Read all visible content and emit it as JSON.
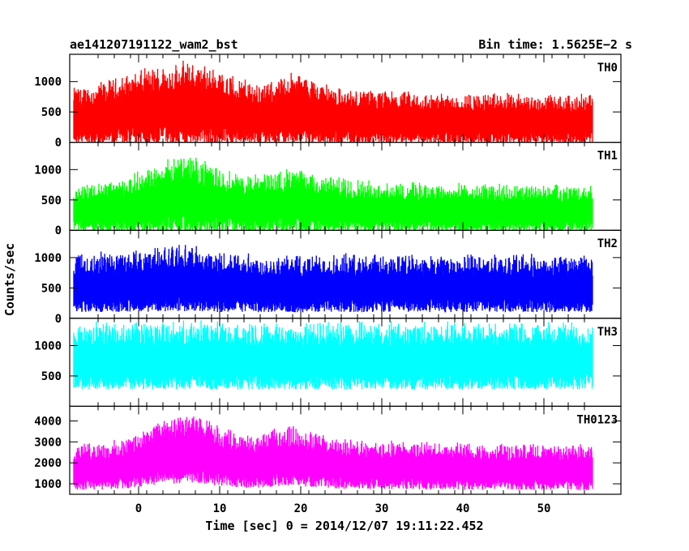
{
  "header": {
    "title": "ae141207191122_wam2_bst",
    "bin_time": "Bin time: 1.5625E−2 s"
  },
  "axes": {
    "xlabel": "Time [sec] 0 = 2014/12/07 19:11:22.452",
    "ylabel": "Counts/sec"
  },
  "chart_data": [
    {
      "type": "line",
      "name": "TH0",
      "color": "#ff0000",
      "xlim": [
        -8.5,
        59.5
      ],
      "ylim": [
        0,
        1450
      ],
      "xticks": [
        0,
        10,
        20,
        30,
        40,
        50
      ],
      "yticks": [
        0,
        500,
        1000
      ],
      "baseline": [
        [
          -8,
          430
        ],
        [
          -4,
          480
        ],
        [
          0,
          560
        ],
        [
          3,
          610
        ],
        [
          6,
          640
        ],
        [
          9,
          590
        ],
        [
          12,
          520
        ],
        [
          16,
          460
        ],
        [
          19,
          560
        ],
        [
          21,
          520
        ],
        [
          25,
          420
        ],
        [
          35,
          390
        ],
        [
          45,
          385
        ],
        [
          56,
          370
        ]
      ],
      "spread": 0.95
    },
    {
      "type": "line",
      "name": "TH1",
      "color": "#00ff00",
      "xlim": [
        -8.5,
        59.5
      ],
      "ylim": [
        0,
        1450
      ],
      "xticks": [
        0,
        10,
        20,
        30,
        40,
        50
      ],
      "yticks": [
        0,
        500,
        1000
      ],
      "baseline": [
        [
          -8,
          360
        ],
        [
          -2,
          400
        ],
        [
          2,
          520
        ],
        [
          6,
          600
        ],
        [
          9,
          520
        ],
        [
          13,
          430
        ],
        [
          19,
          490
        ],
        [
          22,
          440
        ],
        [
          30,
          380
        ],
        [
          45,
          360
        ],
        [
          56,
          350
        ]
      ],
      "spread": 0.95
    },
    {
      "type": "line",
      "name": "TH2",
      "color": "#0000ff",
      "xlim": [
        -8.5,
        59.5
      ],
      "ylim": [
        0,
        1450
      ],
      "xticks": [
        0,
        10,
        20,
        30,
        40,
        50
      ],
      "yticks": [
        0,
        500,
        1000
      ],
      "baseline": [
        [
          -8,
          560
        ],
        [
          0,
          610
        ],
        [
          5,
          660
        ],
        [
          9,
          600
        ],
        [
          15,
          560
        ],
        [
          25,
          560
        ],
        [
          40,
          560
        ],
        [
          56,
          560
        ]
      ],
      "spread": 0.75
    },
    {
      "type": "line",
      "name": "TH3",
      "color": "#00ffff",
      "xlim": [
        -8.5,
        59.5
      ],
      "ylim": [
        0,
        1450
      ],
      "xticks": [
        0,
        10,
        20,
        30,
        40,
        50
      ],
      "yticks": [
        500,
        1000
      ],
      "baseline": [
        [
          -8,
          820
        ],
        [
          56,
          820
        ]
      ],
      "spread": 0.6
    },
    {
      "type": "line",
      "name": "TH0123",
      "color": "#ff00ff",
      "xlim": [
        -8.5,
        59.5
      ],
      "ylim": [
        500,
        4700
      ],
      "xticks": [
        0,
        10,
        20,
        30,
        40,
        50
      ],
      "yticks": [
        1000,
        2000,
        3000,
        4000
      ],
      "baseline": [
        [
          -8,
          1750
        ],
        [
          -2,
          1900
        ],
        [
          3,
          2500
        ],
        [
          7,
          2650
        ],
        [
          10,
          2300
        ],
        [
          14,
          2000
        ],
        [
          19,
          2350
        ],
        [
          21,
          2150
        ],
        [
          26,
          1900
        ],
        [
          40,
          1800
        ],
        [
          56,
          1750
        ]
      ],
      "spread": 0.55
    }
  ]
}
